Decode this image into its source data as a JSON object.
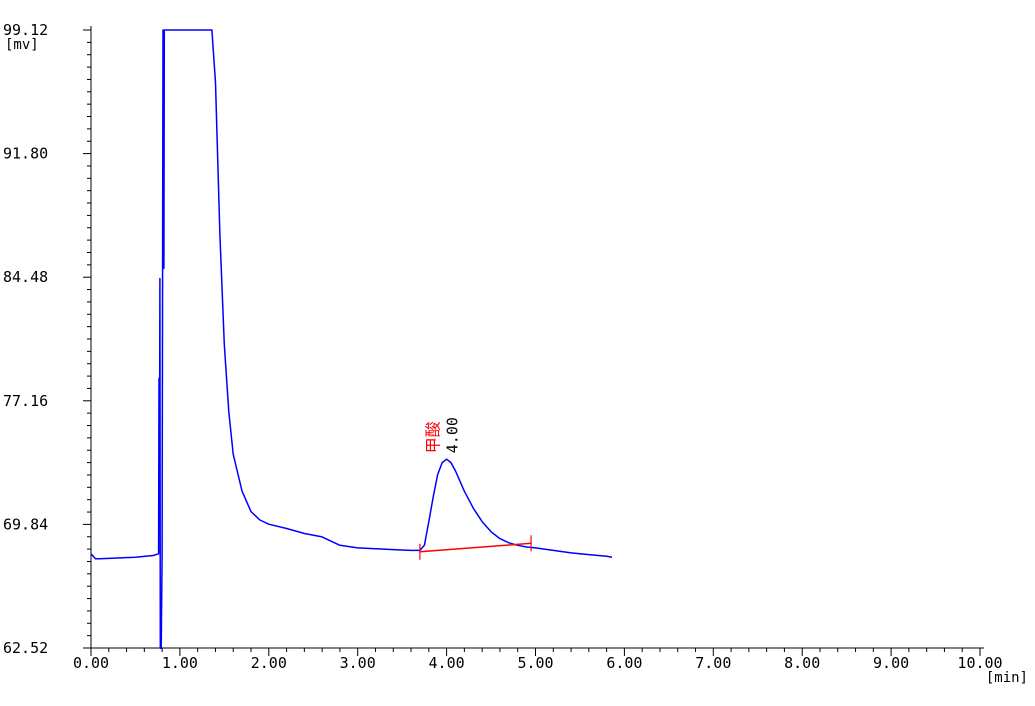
{
  "chart_data": {
    "type": "line",
    "title": "",
    "xlabel": "[min]",
    "ylabel": "[mv]",
    "xlim": [
      0,
      10
    ],
    "ylim": [
      62.52,
      99.12
    ],
    "x_ticks": [
      "0.00",
      "1.00",
      "2.00",
      "3.00",
      "4.00",
      "5.00",
      "6.00",
      "7.00",
      "8.00",
      "9.00",
      "10.00"
    ],
    "y_ticks": [
      "62.52",
      "69.84",
      "77.16",
      "84.48",
      "91.80",
      "99.12"
    ],
    "grid": false,
    "series": [
      {
        "color": "#0000ff",
        "x": [
          0.0,
          0.05,
          0.1,
          0.3,
          0.5,
          0.7,
          0.76,
          0.765,
          0.77,
          0.775,
          0.78,
          0.79,
          0.8,
          0.81,
          0.82,
          0.825,
          0.83,
          0.84,
          0.86,
          0.9,
          1.0,
          1.1,
          1.2,
          1.3,
          1.36,
          1.4,
          1.45,
          1.5,
          1.55,
          1.6,
          1.7,
          1.8,
          1.9,
          2.0,
          2.2,
          2.4,
          2.6,
          2.8,
          3.0,
          3.2,
          3.4,
          3.6,
          3.7,
          3.75,
          3.8,
          3.85,
          3.9,
          3.95,
          4.0,
          4.05,
          4.1,
          4.2,
          4.3,
          4.4,
          4.5,
          4.6,
          4.7,
          4.8,
          4.9,
          5.0,
          5.2,
          5.4,
          5.6,
          5.8,
          5.86
        ],
        "y": [
          68.1,
          67.8,
          67.8,
          67.85,
          67.9,
          68.0,
          68.1,
          78.5,
          72.0,
          84.4,
          62.5,
          62.5,
          68.0,
          99.12,
          85.0,
          99.12,
          99.12,
          99.12,
          99.12,
          99.12,
          99.12,
          99.12,
          99.12,
          99.12,
          99.12,
          96.0,
          87.0,
          80.5,
          76.5,
          74.0,
          71.8,
          70.6,
          70.1,
          69.85,
          69.6,
          69.3,
          69.1,
          68.6,
          68.45,
          68.4,
          68.35,
          68.3,
          68.3,
          68.6,
          70.0,
          71.5,
          72.8,
          73.5,
          73.7,
          73.5,
          73.0,
          71.8,
          70.8,
          70.0,
          69.4,
          69.0,
          68.75,
          68.6,
          68.5,
          68.45,
          68.3,
          68.15,
          68.05,
          67.95,
          67.9
        ]
      },
      {
        "color": "#ff0000",
        "x": [
          3.7,
          4.95
        ],
        "y": [
          68.22,
          68.72
        ]
      }
    ],
    "annotations": [
      {
        "text": "甲酸",
        "color": "#ff0000",
        "x": 4.0,
        "y": 73.7
      },
      {
        "text": "4.00",
        "color": "#000000",
        "x": 4.0,
        "y": 73.7
      }
    ],
    "baseline_marks": [
      3.7,
      4.95
    ]
  }
}
